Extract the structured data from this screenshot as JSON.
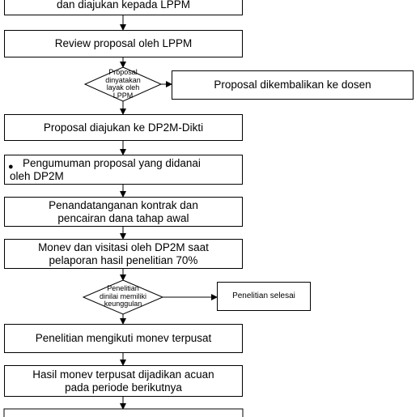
{
  "flowchart": {
    "box_top_partial": "dan diajukan kepada LPPM",
    "box_review": "Review proposal oleh LPPM",
    "decision_1": [
      "Proposal",
      "dinyatakan",
      "layak oleh",
      "LPPM"
    ],
    "box_returned": "Proposal dikembalikan ke dosen",
    "box_submit": "Proposal diajukan ke DP2M-Dikti",
    "box_announce": [
      "Pengumuman proposal yang didanai",
      "oleh DP2M"
    ],
    "box_contract": [
      "Penandatanganan kontrak dan",
      "pencairan dana tahap awal"
    ],
    "box_monev": [
      "Monev dan visitasi oleh DP2M saat",
      "pelaporan hasil penelitian 70%"
    ],
    "decision_2": [
      "Penelitian",
      "dinilai memiliki",
      "keunggulan"
    ],
    "box_done": "Penelitian selesai",
    "box_central": "Penelitian mengikuti monev terpusat",
    "box_result": [
      "Hasil monev terpusat dijadikan acuan",
      "pada periode berikutnya"
    ]
  }
}
